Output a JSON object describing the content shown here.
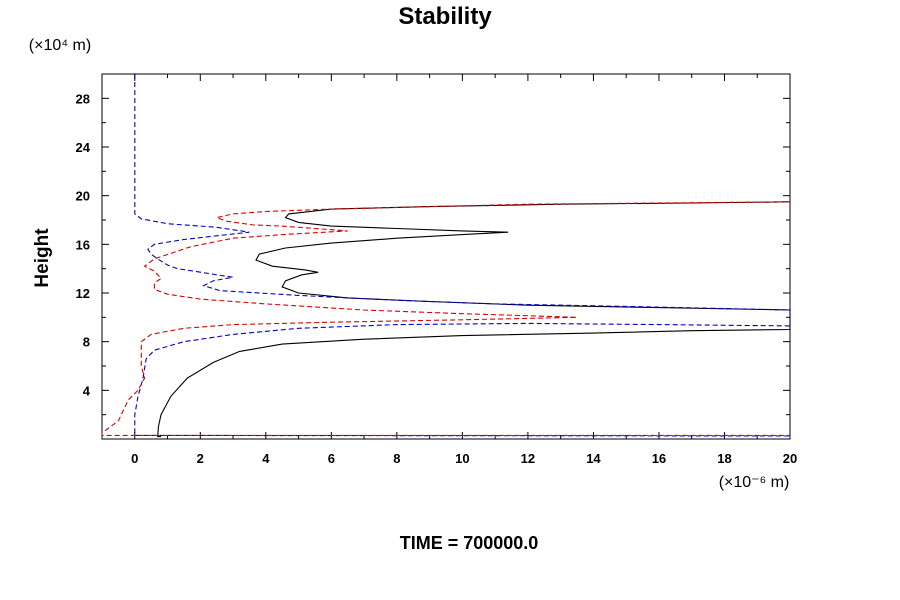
{
  "chart_data": {
    "type": "line",
    "title": "Stability",
    "ylabel": "Height",
    "y_unit_label": "(×10⁴ m)",
    "x_unit_label": "(×10⁻⁶ m)",
    "footer": "TIME = 700000.0",
    "xlim": [
      -1,
      20
    ],
    "ylim": [
      0,
      30
    ],
    "x_ticks": [
      0,
      2,
      4,
      6,
      8,
      10,
      12,
      14,
      16,
      18,
      20
    ],
    "y_ticks": [
      4,
      8,
      12,
      16,
      20,
      24,
      28
    ],
    "grid": false,
    "series": [
      {
        "color": "#000000",
        "style": "solid",
        "points": [
          [
            0.8,
            0.2
          ],
          [
            0.7,
            0.2
          ],
          [
            0.72,
            1.0
          ],
          [
            0.8,
            2.0
          ],
          [
            1.1,
            3.5
          ],
          [
            1.6,
            5.0
          ],
          [
            2.4,
            6.3
          ],
          [
            3.2,
            7.2
          ],
          [
            4.5,
            7.8
          ],
          [
            7.0,
            8.2
          ],
          [
            10.0,
            8.5
          ],
          [
            14.0,
            8.7
          ],
          [
            17.0,
            8.9
          ],
          [
            20.0,
            9.0
          ],
          [
            20.0,
            10.6
          ],
          [
            16.0,
            10.8
          ],
          [
            12.0,
            11.0
          ],
          [
            9.0,
            11.3
          ],
          [
            6.5,
            11.6
          ],
          [
            5.0,
            12.0
          ],
          [
            4.5,
            12.5
          ],
          [
            4.6,
            13.0
          ],
          [
            5.1,
            13.5
          ],
          [
            5.6,
            13.7
          ],
          [
            5.2,
            13.9
          ],
          [
            4.2,
            14.2
          ],
          [
            3.7,
            14.7
          ],
          [
            3.8,
            15.2
          ],
          [
            4.6,
            15.7
          ],
          [
            6.0,
            16.1
          ],
          [
            8.0,
            16.5
          ],
          [
            10.0,
            16.8
          ],
          [
            11.4,
            17.0
          ],
          [
            10.0,
            17.1
          ],
          [
            8.0,
            17.3
          ],
          [
            6.0,
            17.5
          ],
          [
            5.0,
            17.8
          ],
          [
            4.6,
            18.2
          ],
          [
            4.7,
            18.5
          ],
          [
            6.0,
            18.9
          ],
          [
            9.0,
            19.1
          ],
          [
            13.0,
            19.3
          ],
          [
            17.0,
            19.4
          ],
          [
            20.0,
            19.5
          ]
        ]
      },
      {
        "color": "#0000cc",
        "style": "dashed",
        "points": [
          [
            0.0,
            30.0
          ],
          [
            0.0,
            18.5
          ],
          [
            0.2,
            18.1
          ],
          [
            1.0,
            17.7
          ],
          [
            2.5,
            17.4
          ],
          [
            3.5,
            17.0
          ],
          [
            2.5,
            16.7
          ],
          [
            1.5,
            16.4
          ],
          [
            0.6,
            16.0
          ],
          [
            0.4,
            15.6
          ],
          [
            0.5,
            15.2
          ],
          [
            0.7,
            14.8
          ],
          [
            1.0,
            14.3
          ],
          [
            1.3,
            14.0
          ],
          [
            1.8,
            13.8
          ],
          [
            2.5,
            13.5
          ],
          [
            3.0,
            13.3
          ],
          [
            2.4,
            13.0
          ],
          [
            2.1,
            12.6
          ],
          [
            2.6,
            12.2
          ],
          [
            5.0,
            11.8
          ],
          [
            8.0,
            11.4
          ],
          [
            11.0,
            11.1
          ],
          [
            15.0,
            10.9
          ],
          [
            20.0,
            10.6
          ],
          [
            20.0,
            9.3
          ],
          [
            16.0,
            9.4
          ],
          [
            12.0,
            9.5
          ],
          [
            8.0,
            9.4
          ],
          [
            5.0,
            9.1
          ],
          [
            3.0,
            8.6
          ],
          [
            1.5,
            8.0
          ],
          [
            0.6,
            7.3
          ],
          [
            0.35,
            6.6
          ],
          [
            0.25,
            5.0
          ],
          [
            0.1,
            3.5
          ],
          [
            0.0,
            2.0
          ],
          [
            0.0,
            0.3
          ],
          [
            20.0,
            0.25
          ]
        ]
      },
      {
        "color": "#dd0000",
        "style": "dashed",
        "points": [
          [
            20.0,
            19.5
          ],
          [
            12.0,
            19.3
          ],
          [
            6.0,
            18.9
          ],
          [
            4.0,
            18.7
          ],
          [
            3.0,
            18.5
          ],
          [
            2.5,
            18.2
          ],
          [
            2.8,
            17.9
          ],
          [
            3.6,
            17.6
          ],
          [
            4.5,
            17.5
          ],
          [
            5.5,
            17.3
          ],
          [
            6.5,
            17.1
          ],
          [
            4.5,
            16.8
          ],
          [
            3.0,
            16.5
          ],
          [
            1.7,
            15.8
          ],
          [
            0.6,
            14.8
          ],
          [
            0.3,
            14.2
          ],
          [
            0.6,
            13.8
          ],
          [
            0.8,
            13.2
          ],
          [
            0.6,
            12.8
          ],
          [
            0.6,
            12.3
          ],
          [
            1.0,
            11.9
          ],
          [
            2.0,
            11.5
          ],
          [
            4.0,
            11.1
          ],
          [
            7.0,
            10.6
          ],
          [
            10.0,
            10.3
          ],
          [
            13.5,
            10.0
          ],
          [
            10.0,
            9.8
          ],
          [
            6.0,
            9.6
          ],
          [
            3.0,
            9.4
          ],
          [
            1.5,
            9.1
          ],
          [
            0.5,
            8.6
          ],
          [
            0.2,
            8.0
          ],
          [
            0.2,
            6.0
          ],
          [
            0.3,
            5.0
          ],
          [
            0.1,
            4.0
          ],
          [
            -0.2,
            3.2
          ],
          [
            -0.5,
            1.5
          ],
          [
            -1.0,
            0.5
          ],
          [
            -1.0,
            0.3
          ],
          [
            20.0,
            0.3
          ]
        ]
      }
    ]
  }
}
